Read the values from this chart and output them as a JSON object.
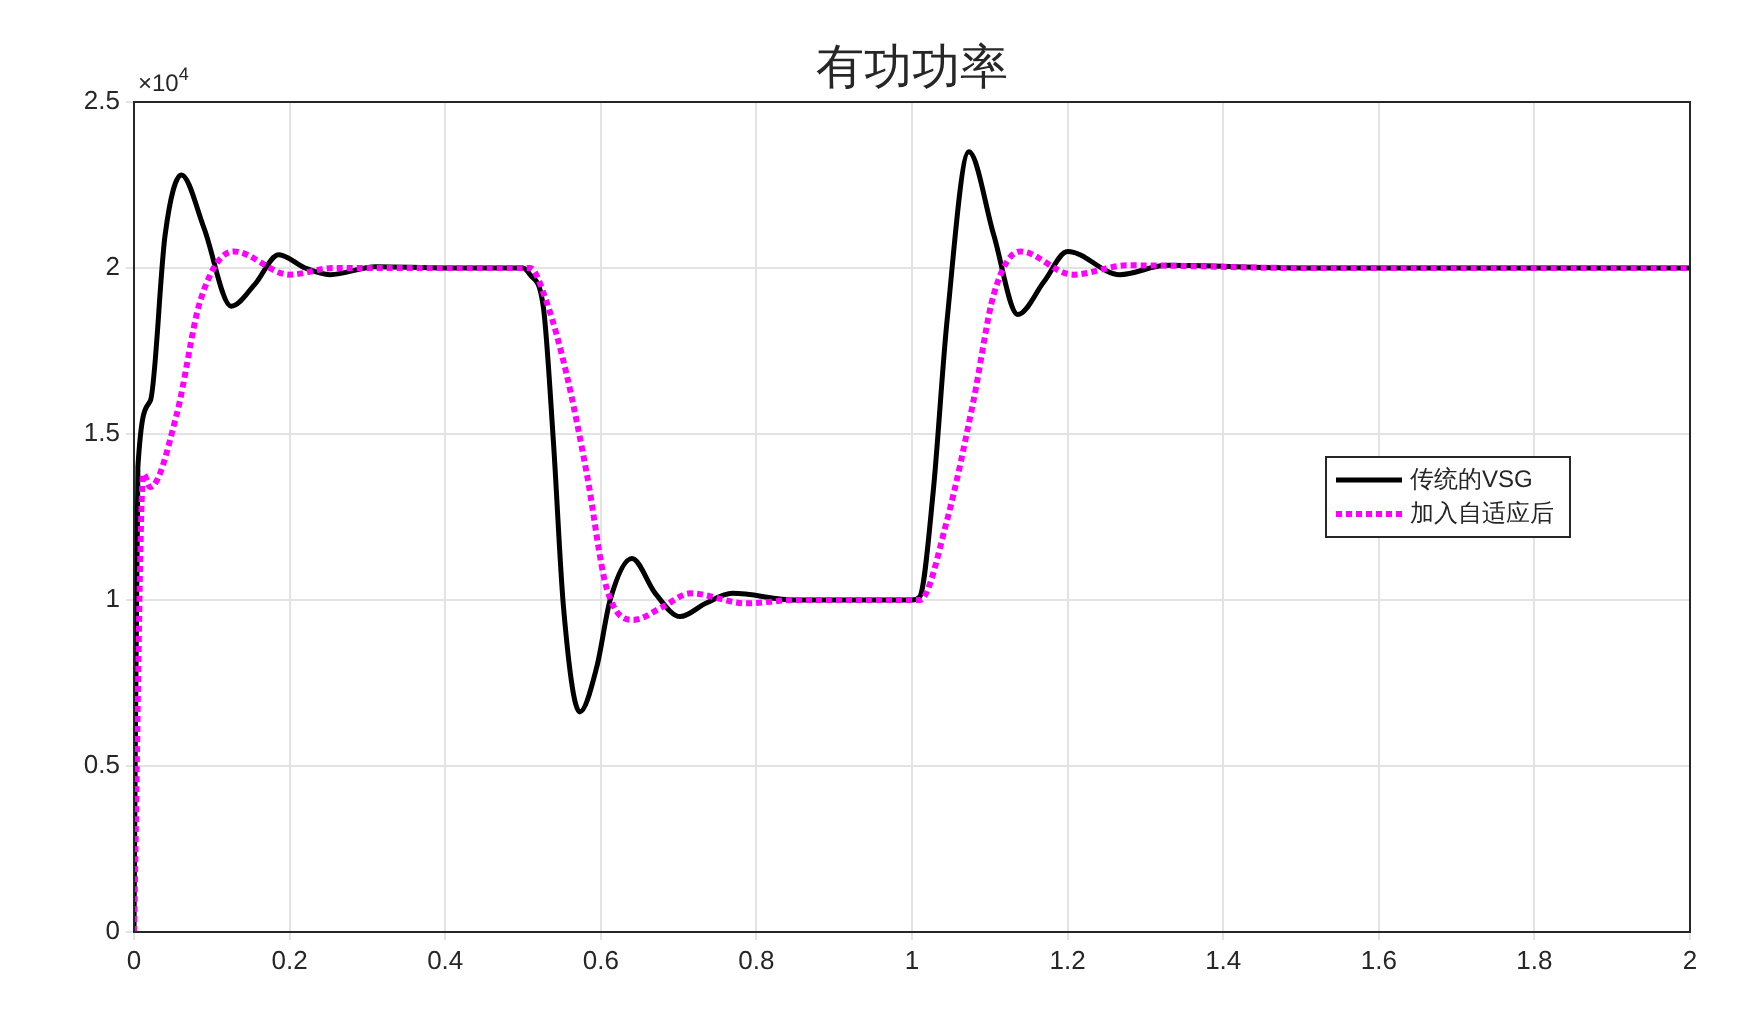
{
  "chart_data": {
    "type": "line",
    "title": "有功功率",
    "annotations": [
      "×10$^{4}$"
    ],
    "xlim": [
      0,
      2
    ],
    "xticks": [
      0,
      0.2,
      0.4,
      0.6,
      0.8,
      1,
      1.2,
      1.4,
      1.6,
      1.8,
      2
    ],
    "ylim": [
      0,
      2.5
    ],
    "yticks": [
      0,
      0.5,
      1,
      1.5,
      2,
      2.5
    ],
    "grid": true,
    "legend": "right",
    "marker": "none",
    "series": [
      {
        "name": "传统的VSG",
        "color": "#000000",
        "line_style": "solid",
        "x": [
          0,
          0.005,
          0.021,
          0.04,
          0.061,
          0.09,
          0.125,
          0.155,
          0.186,
          0.22,
          0.252,
          0.311,
          0.4,
          0.5,
          0.509,
          0.526,
          0.539,
          0.552,
          0.573,
          0.595,
          0.612,
          0.64,
          0.67,
          0.702,
          0.735,
          0.769,
          0.85,
          1.0,
          1.01,
          1.027,
          1.045,
          1.073,
          1.105,
          1.136,
          1.17,
          1.2,
          1.267,
          1.327,
          1.5,
          2
        ],
        "values": [
          0,
          1.4,
          1.6,
          2.1,
          2.28,
          2.12,
          1.885,
          1.95,
          2.04,
          2.0,
          1.98,
          2.004,
          2.0,
          2.0,
          1.98,
          1.885,
          1.48,
          0.98,
          0.663,
          0.8,
          1.0,
          1.125,
          1.02,
          0.95,
          0.99,
          1.02,
          1.0,
          1.0,
          1.01,
          1.32,
          1.84,
          2.35,
          2.1,
          1.86,
          1.96,
          2.05,
          1.98,
          2.008,
          2.0,
          2.0
        ]
      },
      {
        "name": "加入自适应后",
        "color": "#ff00ff",
        "line_style": "dotted",
        "x": [
          0,
          0.012,
          0.021,
          0.055,
          0.085,
          0.128,
          0.2,
          0.256,
          0.4,
          0.5,
          0.509,
          0.53,
          0.556,
          0.582,
          0.607,
          0.642,
          0.68,
          0.715,
          0.787,
          0.85,
          1.0,
          1.01,
          1.045,
          1.079,
          1.105,
          1.139,
          1.207,
          1.276,
          1.5,
          2
        ],
        "values": [
          0,
          1.38,
          1.34,
          1.56,
          1.9,
          2.05,
          1.98,
          2.0,
          2.0,
          2.0,
          2.0,
          1.9,
          1.68,
          1.38,
          1.04,
          0.94,
          0.98,
          1.02,
          0.99,
          1.0,
          1.0,
          1.0,
          1.24,
          1.6,
          1.92,
          2.05,
          1.98,
          2.008,
          2.0,
          2.0
        ]
      }
    ]
  }
}
